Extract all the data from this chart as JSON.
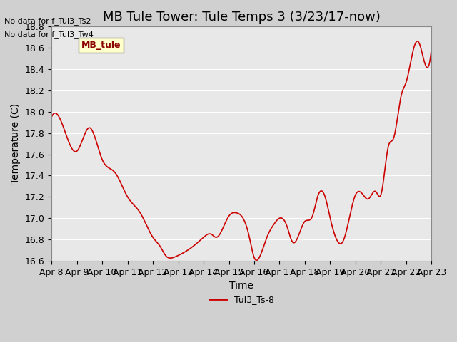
{
  "title": "MB Tule Tower: Tule Temps 3 (3/23/17-now)",
  "xlabel": "Time",
  "ylabel": "Temperature (C)",
  "no_data_text": [
    "No data for f_Tul3_Ts2",
    "No data for f_Tul3_Tw4"
  ],
  "legend_box_label": "MB_tule",
  "legend_line_label": "Tul3_Ts-8",
  "line_color": "#cc0000",
  "ylim": [
    16.6,
    18.8
  ],
  "yticks": [
    16.6,
    16.8,
    17.0,
    17.2,
    17.4,
    17.6,
    17.8,
    18.0,
    18.2,
    18.4,
    18.6,
    18.8
  ],
  "xtick_labels": [
    "Apr 8",
    "Apr 9",
    "Apr 10",
    "Apr 11",
    "Apr 12",
    "Apr 13",
    "Apr 14",
    "Apr 15",
    "Apr 16",
    "Apr 17",
    "Apr 18",
    "Apr 19",
    "Apr 20",
    "Apr 21",
    "Apr 22",
    "Apr 23"
  ],
  "background_color": "#e8e8e8",
  "plot_bg_color": "#e8e8e8",
  "grid_color": "#ffffff",
  "title_fontsize": 13,
  "axis_fontsize": 10,
  "tick_fontsize": 9
}
